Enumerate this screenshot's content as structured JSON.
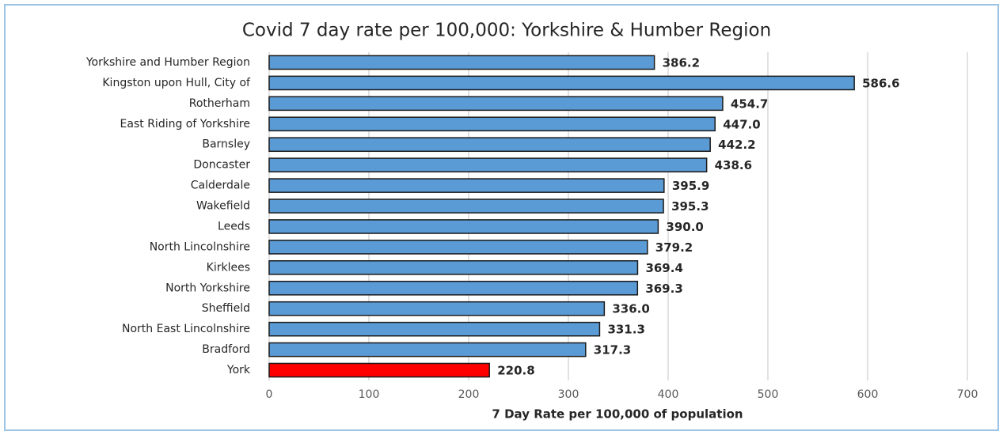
{
  "chart_data": {
    "type": "bar",
    "orientation": "horizontal",
    "title": "Covid 7 day rate per 100,000:  Yorkshire & Humber Region",
    "xlabel": "7 Day Rate per 100,000 of population",
    "categories": [
      "Yorkshire and Humber Region",
      "Kingston upon Hull, City of",
      "Rotherham",
      "East Riding of Yorkshire",
      "Barnsley",
      "Doncaster",
      "Calderdale",
      "Wakefield",
      "Leeds",
      "North Lincolnshire",
      "Kirklees",
      "North Yorkshire",
      "Sheffield",
      "North East Lincolnshire",
      "Bradford",
      "York"
    ],
    "values": [
      386.2,
      586.6,
      454.7,
      447.0,
      442.2,
      438.6,
      395.9,
      395.3,
      390.0,
      379.2,
      369.4,
      369.3,
      336.0,
      331.3,
      317.3,
      220.8
    ],
    "value_labels": [
      "386.2",
      "586.6",
      "454.7",
      "447.0",
      "442.2",
      "438.6",
      "395.9",
      "395.3",
      "390.0",
      "379.2",
      "369.4",
      "369.3",
      "336.0",
      "331.3",
      "317.3",
      "220.8"
    ],
    "colors": [
      "#5b9bd5",
      "#5b9bd5",
      "#5b9bd5",
      "#5b9bd5",
      "#5b9bd5",
      "#5b9bd5",
      "#5b9bd5",
      "#5b9bd5",
      "#5b9bd5",
      "#5b9bd5",
      "#5b9bd5",
      "#5b9bd5",
      "#5b9bd5",
      "#5b9bd5",
      "#5b9bd5",
      "#ff0000"
    ],
    "xlim": [
      0,
      700
    ],
    "xticks": [
      0,
      100,
      200,
      300,
      400,
      500,
      600,
      700
    ],
    "grid": true
  }
}
